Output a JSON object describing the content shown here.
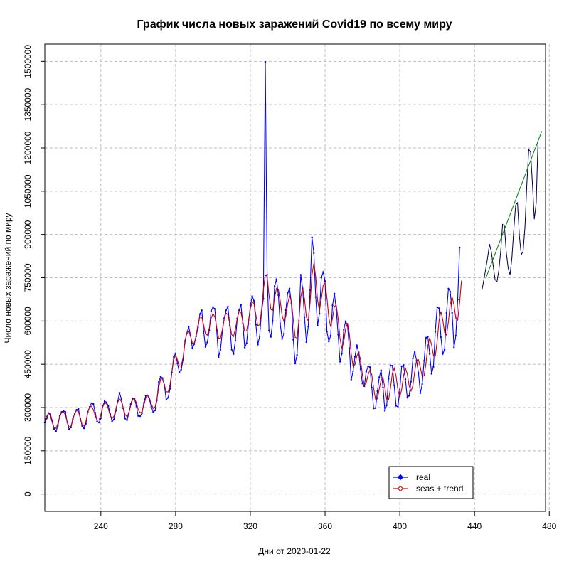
{
  "chart_data": {
    "type": "line",
    "title": "График числа новых заражений Covid19 по всему миру",
    "xlabel": "Дни от 2020-01-22",
    "ylabel": "Число новых заражений по миру",
    "xlim": [
      210,
      478
    ],
    "ylim": [
      -60000,
      1560000
    ],
    "xticks": [
      240,
      280,
      320,
      360,
      400,
      440,
      480
    ],
    "yticks": [
      0,
      150000,
      300000,
      450000,
      600000,
      750000,
      900000,
      1050000,
      1200000,
      1350000,
      1500000
    ],
    "grid": true,
    "legend_position": "bottom-right",
    "legend": [
      "real",
      "seas + trend"
    ],
    "colors": {
      "real": "#0000ff",
      "seas_trend": "#cc0000",
      "forecast": "#000000",
      "forecast_trend": "#008000",
      "grid": "#bebebe"
    },
    "series": [
      {
        "name": "real",
        "x_start": 210,
        "values": [
          248000,
          262000,
          281000,
          277000,
          254000,
          226000,
          218000,
          237000,
          272000,
          285000,
          288000,
          285000,
          249000,
          225000,
          231000,
          260000,
          280000,
          292000,
          295000,
          262000,
          236000,
          228000,
          244000,
          285000,
          302000,
          315000,
          312000,
          282000,
          252000,
          248000,
          263000,
          305000,
          322000,
          318000,
          306000,
          278000,
          251000,
          259000,
          289000,
          321000,
          351000,
          329000,
          297000,
          262000,
          256000,
          281000,
          312000,
          332000,
          331000,
          305000,
          271000,
          270000,
          280000,
          316000,
          341000,
          342000,
          328000,
          303000,
          285000,
          290000,
          325000,
          389000,
          408000,
          402000,
          378000,
          327000,
          334000,
          365000,
          421000,
          476000,
          488000,
          453000,
          423000,
          431000,
          466000,
          531000,
          557000,
          580000,
          550000,
          506000,
          520000,
          547000,
          578000,
          624000,
          637000,
          564000,
          510000,
          526000,
          568000,
          634000,
          648000,
          642000,
          566000,
          475000,
          500000,
          561000,
          610000,
          637000,
          650000,
          585000,
          501000,
          486000,
          532000,
          609000,
          638000,
          655000,
          591000,
          508000,
          523000,
          590000,
          654000,
          686000,
          670000,
          587000,
          518000,
          547000,
          632000,
          677000,
          1498000,
          760000,
          567000,
          545000,
          600000,
          721000,
          745000,
          690000,
          590000,
          538000,
          556000,
          638000,
          698000,
          712000,
          662000,
          535000,
          453000,
          482000,
          600000,
          760000,
          713000,
          613000,
          527000,
          581000,
          707000,
          890000,
          835000,
          683000,
          585000,
          626000,
          750000,
          770000,
          738000,
          563000,
          529000,
          549000,
          654000,
          695000,
          639000,
          553000,
          459000,
          487000,
          569000,
          599000,
          585000,
          505000,
          397000,
          426000,
          476000,
          516000,
          491000,
          433000,
          383000,
          374000,
          424000,
          442000,
          440000,
          369000,
          297000,
          298000,
          357000,
          405000,
          429000,
          370000,
          289000,
          308000,
          400000,
          446000,
          445000,
          377000,
          306000,
          303000,
          362000,
          443000,
          447000,
          398000,
          334000,
          341000,
          390000,
          470000,
          492000,
          463000,
          419000,
          350000,
          381000,
          462000,
          542000,
          546000,
          486000,
          417000,
          441000,
          563000,
          648000,
          644000,
          544000,
          486000,
          501000,
          628000,
          712000,
          702000,
          628000,
          509000,
          549000,
          674000,
          855000
        ],
        "seas_trend_values": [
          256000,
          270000,
          281000,
          272000,
          247000,
          230000,
          228000,
          245000,
          268000,
          283000,
          285000,
          274000,
          250000,
          232000,
          236000,
          259000,
          279000,
          290000,
          286000,
          263000,
          240000,
          235000,
          252000,
          283000,
          302000,
          305000,
          292000,
          271000,
          256000,
          257000,
          276000,
          303000,
          316000,
          313000,
          295000,
          273000,
          262000,
          270000,
          294000,
          319000,
          329000,
          321000,
          299000,
          275000,
          268000,
          283000,
          307000,
          328000,
          331000,
          317000,
          293000,
          281000,
          286000,
          308000,
          333000,
          342000,
          333000,
          312000,
          297000,
          302000,
          329000,
          370000,
          399000,
          399000,
          379000,
          355000,
          354000,
          378000,
          424000,
          466000,
          481000,
          465000,
          444000,
          444000,
          474000,
          523000,
          559000,
          565000,
          547000,
          523000,
          524000,
          550000,
          588000,
          614000,
          613000,
          586000,
          555000,
          551000,
          575000,
          609000,
          626000,
          615000,
          578000,
          541000,
          540000,
          569000,
          606000,
          628000,
          622000,
          589000,
          553000,
          546000,
          572000,
          609000,
          633000,
          630000,
          598000,
          564000,
          566000,
          600000,
          643000,
          667000,
          660000,
          621000,
          584000,
          587000,
          637000,
          708000,
          760000,
          754000,
          690000,
          640000,
          637000,
          681000,
          713000,
          710000,
          670000,
          620000,
          598000,
          617000,
          660000,
          687000,
          668000,
          604000,
          543000,
          541000,
          604000,
          684000,
          715000,
          677000,
          613000,
          600000,
          664000,
          759000,
          800000,
          753000,
          673000,
          635000,
          677000,
          724000,
          733000,
          680000,
          612000,
          580000,
          610000,
          651000,
          654000,
          608000,
          540000,
          505000,
          528000,
          573000,
          593000,
          555000,
          487000,
          443000,
          449000,
          479000,
          492000,
          465000,
          412000,
          377000,
          385000,
          413000,
          430000,
          414000,
          367000,
          328000,
          330000,
          364000,
          396000,
          404000,
          368000,
          328000,
          326000,
          368000,
          418000,
          437000,
          408000,
          360000,
          337000,
          362000,
          411000,
          436000,
          417000,
          376000,
          357000,
          376000,
          425000,
          465000,
          466000,
          439000,
          408000,
          410000,
          453000,
          513000,
          542000,
          518000,
          481000,
          478000,
          529000,
          602000,
          633000,
          604000,
          560000,
          551000,
          597000,
          661000,
          683000,
          656000,
          609000,
          603000,
          664000,
          740000
        ]
      },
      {
        "name": "forecast",
        "x_start": 444,
        "values": [
          708000,
          743000,
          780000,
          820000,
          867000,
          840000,
          792000,
          743000,
          736000,
          775000,
          843000,
          935000,
          929000,
          838000,
          783000,
          760000,
          818000,
          915000,
          1002000,
          1010000,
          895000,
          830000,
          842000,
          927000,
          1074000,
          1195000,
          1185000,
          1075000,
          953000,
          1010000,
          1230000
        ]
      },
      {
        "name": "forecast_trend",
        "x_start": 446,
        "values": [
          748000,
          765000,
          782000,
          799000,
          816000,
          833000,
          850000,
          867000,
          884000,
          901000,
          918000,
          935000,
          952000,
          969000,
          986000,
          1003000,
          1020000,
          1037000,
          1054000,
          1071000,
          1088000,
          1105000,
          1122000,
          1139000,
          1156000,
          1173000,
          1190000,
          1207000,
          1224000,
          1241000,
          1258000
        ]
      }
    ]
  }
}
